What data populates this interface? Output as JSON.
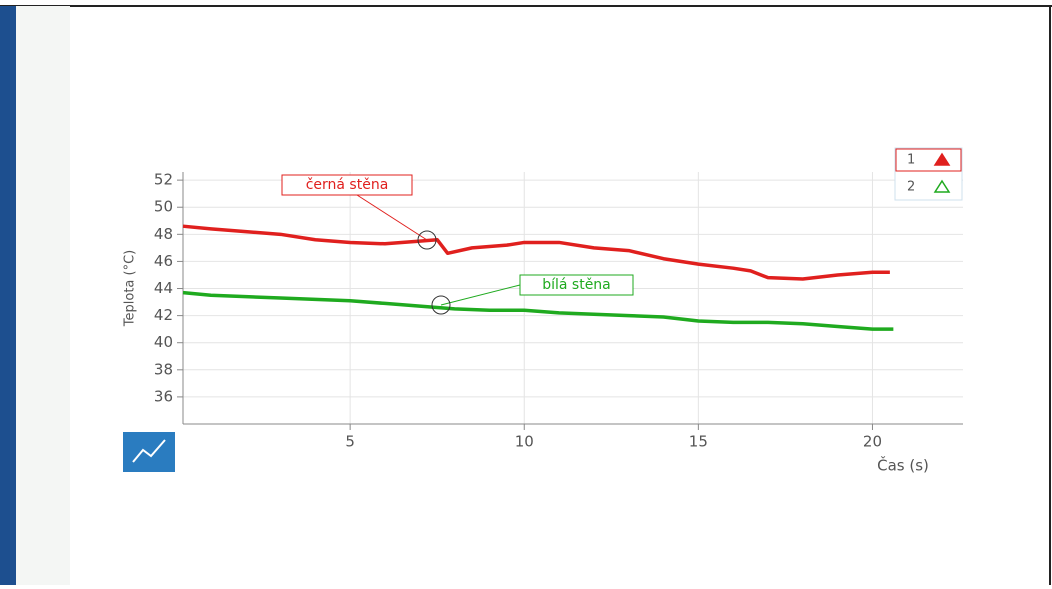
{
  "chart_data": {
    "type": "line",
    "x_label": "Čas (s)",
    "y_label": "Teplota (°C)",
    "xlim": [
      0.2,
      22.6
    ],
    "ylim": [
      34,
      52.6
    ],
    "xticks": [
      5,
      10,
      15,
      20
    ],
    "yticks": [
      36,
      38,
      40,
      42,
      44,
      46,
      48,
      50,
      52
    ],
    "grid": true,
    "legend": "top-right",
    "series": [
      {
        "name": "1",
        "color": "#e0201e",
        "marker": "filled-triangle",
        "x": [
          0.2,
          1,
          2,
          3,
          4,
          5,
          6,
          7,
          7.5,
          7.8,
          8.5,
          9.5,
          10,
          11,
          12,
          13,
          14,
          15,
          16,
          16.5,
          17,
          18,
          19,
          20,
          20.5
        ],
        "values": [
          48.6,
          48.4,
          48.2,
          48,
          47.6,
          47.4,
          47.3,
          47.5,
          47.6,
          46.6,
          47,
          47.2,
          47.4,
          47.4,
          47,
          46.8,
          46.2,
          45.8,
          45.5,
          45.3,
          44.8,
          44.7,
          45,
          45.2,
          45.2
        ]
      },
      {
        "name": "2",
        "color": "#1faa1f",
        "marker": "hollow-triangle",
        "x": [
          0.2,
          1,
          2,
          3,
          4,
          5,
          6,
          7,
          8,
          9,
          10,
          11,
          12,
          13,
          14,
          15,
          16,
          17,
          18,
          19,
          20,
          20.6
        ],
        "values": [
          43.7,
          43.5,
          43.4,
          43.3,
          43.2,
          43.1,
          42.9,
          42.7,
          42.5,
          42.4,
          42.4,
          42.2,
          42.1,
          42,
          41.9,
          41.6,
          41.5,
          41.5,
          41.4,
          41.2,
          41,
          41
        ]
      }
    ],
    "annotations": [
      {
        "text": "černá stěna"
      },
      {
        "text": "bílá stěna"
      }
    ]
  }
}
